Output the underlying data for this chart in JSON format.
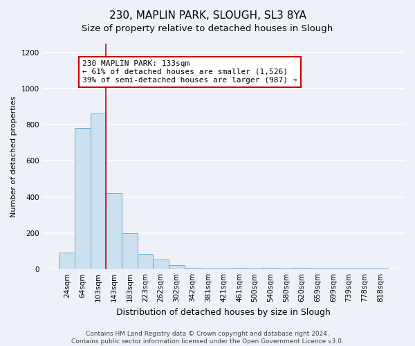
{
  "title": "230, MAPLIN PARK, SLOUGH, SL3 8YA",
  "subtitle": "Size of property relative to detached houses in Slough",
  "xlabel": "Distribution of detached houses by size in Slough",
  "ylabel": "Number of detached properties",
  "bar_labels": [
    "24sqm",
    "64sqm",
    "103sqm",
    "143sqm",
    "183sqm",
    "223sqm",
    "262sqm",
    "302sqm",
    "342sqm",
    "381sqm",
    "421sqm",
    "461sqm",
    "500sqm",
    "540sqm",
    "580sqm",
    "620sqm",
    "659sqm",
    "699sqm",
    "739sqm",
    "778sqm",
    "818sqm"
  ],
  "bar_values": [
    93,
    782,
    863,
    420,
    200,
    85,
    53,
    22,
    8,
    3,
    3,
    10,
    3,
    10,
    3,
    10,
    3,
    3,
    3,
    3,
    3
  ],
  "bar_color": "#cce0f0",
  "bar_edge_color": "#5ba3d0",
  "vline_x_index": 3,
  "vline_color": "#cc0000",
  "annotation_text": "230 MAPLIN PARK: 133sqm\n← 61% of detached houses are smaller (1,526)\n39% of semi-detached houses are larger (987) →",
  "annotation_box_color": "#ffffff",
  "annotation_box_edge_color": "#cc0000",
  "ylim": [
    0,
    1250
  ],
  "yticks": [
    0,
    200,
    400,
    600,
    800,
    1000,
    1200
  ],
  "footer_text": "Contains HM Land Registry data © Crown copyright and database right 2024.\nContains public sector information licensed under the Open Government Licence v3.0.",
  "background_color": "#eef2f8",
  "plot_background_color": "#eef2f8",
  "grid_color": "#ffffff",
  "title_fontsize": 11,
  "xlabel_fontsize": 9,
  "ylabel_fontsize": 8,
  "footer_fontsize": 6.5,
  "tick_fontsize": 7.5,
  "annotation_fontsize": 8
}
